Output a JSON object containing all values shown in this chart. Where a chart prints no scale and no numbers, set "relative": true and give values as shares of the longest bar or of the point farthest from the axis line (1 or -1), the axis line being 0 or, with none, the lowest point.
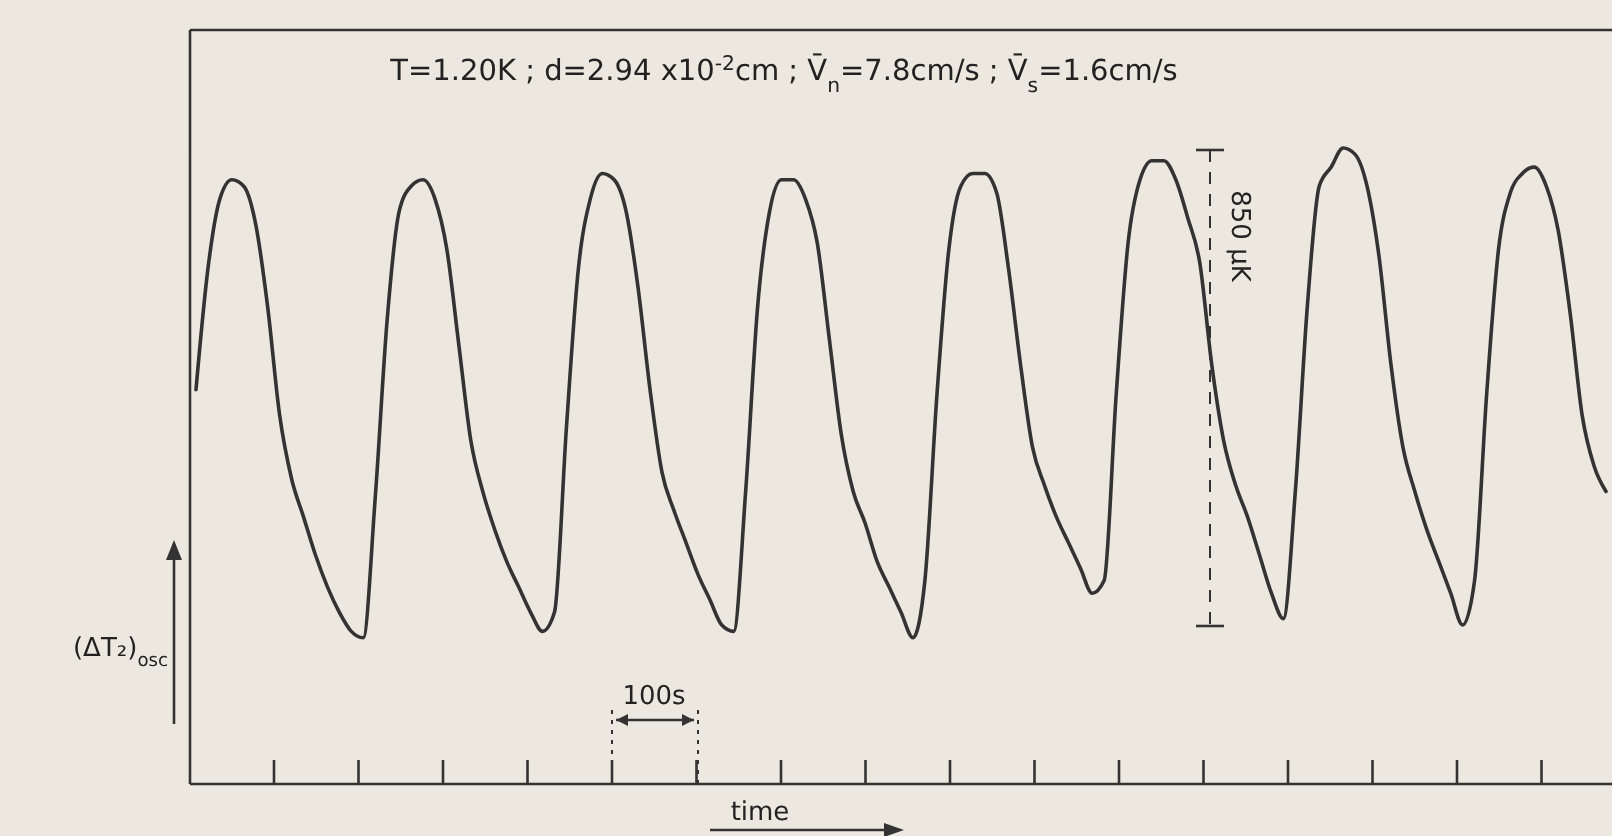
{
  "chart_data": {
    "type": "line",
    "relative": true,
    "title": "T=1.20K ; d=2.94 x10$^{-2}$cm ; V̄$_{n}$=7.8cm/s ; V̄$_{s}$=1.6cm/s",
    "xlabel": "time",
    "ylabel": "(ΔT₂)$_{osc}$",
    "categories": [
      null,
      null,
      null,
      null,
      null,
      null,
      null,
      null,
      null,
      null,
      null,
      null,
      null,
      null,
      null,
      null,
      null,
      null,
      null,
      null,
      null,
      null,
      null,
      null,
      null,
      null,
      null,
      null,
      null,
      null,
      null,
      null,
      null,
      null,
      null,
      null,
      null,
      null,
      null,
      null,
      null,
      null,
      null,
      null,
      null,
      null,
      null,
      null,
      null,
      null,
      null,
      null,
      null,
      null,
      null,
      null,
      null,
      null,
      null,
      null,
      null,
      null,
      null,
      null,
      null,
      null,
      null,
      null,
      null,
      null,
      null,
      null,
      null,
      null,
      null,
      null,
      null,
      null,
      null,
      null,
      null,
      null,
      null,
      null,
      null,
      null,
      null,
      null,
      null,
      null,
      null,
      null,
      null,
      null,
      null,
      null,
      null,
      null,
      null,
      null,
      null,
      null,
      null,
      null,
      null,
      null,
      null,
      null,
      null,
      null,
      null,
      null,
      null,
      null,
      null,
      null,
      null,
      null,
      null
    ],
    "series": [
      {
        "color": "#333333",
        "values": [
          0.62,
          0.81,
          0.92,
          0.95,
          0.94,
          0.88,
          0.75,
          0.58,
          0.48,
          0.42,
          0.36,
          0.31,
          0.27,
          0.24,
          0.23,
          0.45,
          0.73,
          0.9,
          0.94,
          0.95,
          0.92,
          0.84,
          0.69,
          0.54,
          0.46,
          0.4,
          0.35,
          0.31,
          0.27,
          0.24,
          0.27,
          0.56,
          0.81,
          0.92,
          0.96,
          0.95,
          0.9,
          0.78,
          0.62,
          0.49,
          0.43,
          0.38,
          0.33,
          0.29,
          0.25,
          0.24,
          0.46,
          0.75,
          0.9,
          0.95,
          0.95,
          0.92,
          0.85,
          0.7,
          0.55,
          0.46,
          0.41,
          0.35,
          0.31,
          0.27,
          0.23,
          0.32,
          0.61,
          0.84,
          0.94,
          0.96,
          0.96,
          0.93,
          0.81,
          0.66,
          0.53,
          0.47,
          0.42,
          0.38,
          0.34,
          0.3,
          0.32,
          0.61,
          0.85,
          0.95,
          0.98,
          0.98,
          0.95,
          0.89,
          0.82,
          0.66,
          0.54,
          0.47,
          0.42,
          0.36,
          0.3,
          0.26,
          0.46,
          0.75,
          0.94,
          0.97,
          1.0,
          0.99,
          0.94,
          0.83,
          0.66,
          0.53,
          0.46,
          0.4,
          0.35,
          0.3,
          0.25,
          0.32,
          0.61,
          0.84,
          0.93,
          0.96,
          0.97,
          0.94,
          0.87,
          0.74,
          0.58,
          0.5,
          0.46
        ]
      }
    ],
    "annotations": [
      "100s",
      "850 μK"
    ]
  }
}
